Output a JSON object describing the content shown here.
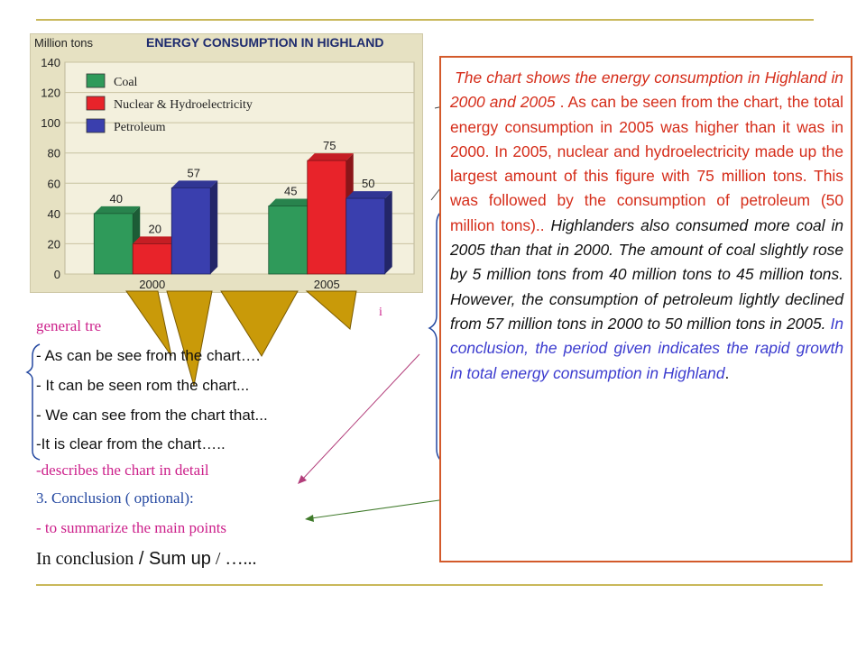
{
  "chart_data": {
    "type": "bar",
    "title": "ENERGY CONSUMPTION IN HIGHLAND",
    "ylabel": "Million tons",
    "categories": [
      "2000",
      "2005"
    ],
    "yticks": [
      "0",
      "20",
      "40",
      "60",
      "80",
      "100",
      "120",
      "140"
    ],
    "ylim": [
      0,
      140
    ],
    "grid": true,
    "legend_position": "top-left",
    "series": [
      {
        "name": "Coal",
        "color": "#2f9a5a",
        "values": [
          40,
          45
        ],
        "labels": [
          "40",
          "45"
        ]
      },
      {
        "name": "Nuclear & Hydroelectricity",
        "color": "#e8232a",
        "values": [
          20,
          75
        ],
        "labels": [
          "20",
          "75"
        ]
      },
      {
        "name": "Petroleum",
        "color": "#3a3fae",
        "values": [
          57,
          50
        ],
        "labels": [
          "57",
          "50"
        ]
      }
    ]
  },
  "notes": {
    "line1": "general tre",
    "line2": "- As can be see  from the chart….",
    "line3": "- It can be seen  rom the chart...",
    "line4": "- We can see from the chart that...",
    "line5": "-It is clear from the chart…..",
    "line6": "-describes the chart in detail",
    "line7": "3. Conclusion ( optional):",
    "line8": "- to summarize the main points",
    "line9a": "In conclusion",
    "line9b": " / ",
    "line9c": "Sum up",
    "line9d": " / …..."
  },
  "paragraph": {
    "s1": "The chart shows the energy consumption in Highland in 2000 and 2005",
    "s2": " . As can be seen from the chart, the total energy consumption in 2005 was higher than it was in 2000. In 2005, nuclear and hydroelectricity made up the largest amount of this figure with 75 million tons. This was followed by the consumption of petroleum (50 million tons).. ",
    "s3": "Highlanders also consumed more coal in 2005 than that in 2000. The amount of coal slightly rose by 5 million tons from 40 million tons to 45 million tons. However, the consumption of petroleum lightly declined from 57 million tons in 2000 to 50 million tons in 2005.",
    "s4": " In conclusion, the period given indicates the rapid growth in total energy consumption in Highland",
    "s5": "."
  }
}
